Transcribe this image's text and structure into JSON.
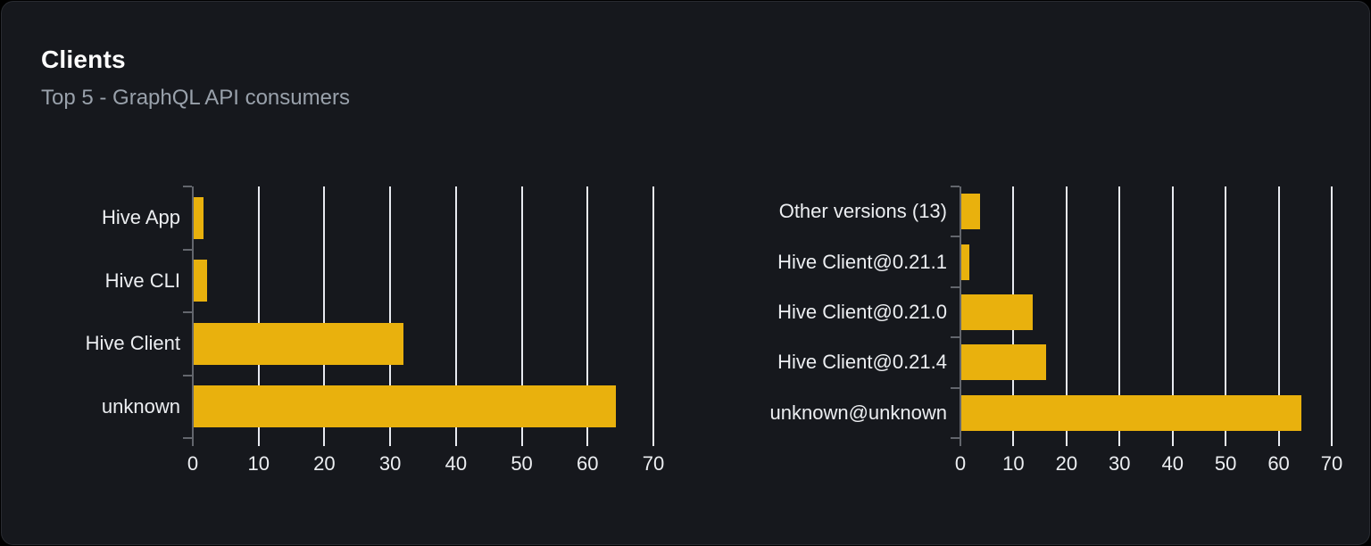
{
  "card": {
    "title": "Clients",
    "subtitle": "Top 5 - GraphQL API consumers"
  },
  "colors": {
    "card_bg": "#16181d",
    "card_border": "#282b31",
    "bar": "#e9b10d",
    "gridline": "#e8eaf0",
    "axis": "#63666d",
    "text": "#eceef1",
    "subtitle": "#99a1ab"
  },
  "chart_data": [
    {
      "type": "bar",
      "orientation": "horizontal",
      "title": "",
      "xlabel": "",
      "ylabel": "",
      "categories": [
        "Hive App",
        "Hive CLI",
        "Hive Client",
        "unknown"
      ],
      "values": [
        1.6,
        2.2,
        32,
        64.3
      ],
      "xticks": [
        0,
        10,
        20,
        30,
        40,
        50,
        60,
        70
      ],
      "xlim": [
        0,
        70
      ],
      "grid": true,
      "legend": "none"
    },
    {
      "type": "bar",
      "orientation": "horizontal",
      "title": "",
      "xlabel": "",
      "ylabel": "",
      "categories": [
        "Other versions (13)",
        "Hive Client@0.21.1",
        "Hive Client@0.21.0",
        "Hive Client@0.21.4",
        "unknown@unknown"
      ],
      "values": [
        3.7,
        1.7,
        13.6,
        16.2,
        64.3
      ],
      "xticks": [
        0,
        10,
        20,
        30,
        40,
        50,
        60,
        70
      ],
      "xlim": [
        0,
        70
      ],
      "grid": true,
      "legend": "none"
    }
  ]
}
